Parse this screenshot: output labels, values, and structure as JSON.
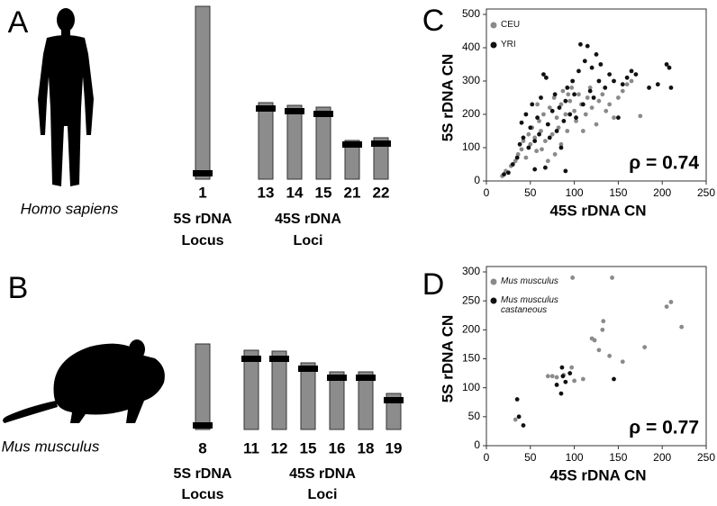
{
  "panels": [
    {
      "letter": "A",
      "species": "Homo sapiens",
      "chromosomes": [
        "1",
        "13",
        "14",
        "15",
        "21",
        "22"
      ],
      "locus_5s": [
        "5S rDNA",
        "Locus"
      ],
      "loci_45s": [
        "45S rDNA",
        "Loci"
      ]
    },
    {
      "letter": "B",
      "species": "Mus musculus",
      "chromosomes": [
        "8",
        "11",
        "12",
        "15",
        "16",
        "18",
        "19"
      ],
      "locus_5s": [
        "5S rDNA",
        "Locus"
      ],
      "loci_45s": [
        "45S rDNA",
        "Loci"
      ]
    }
  ],
  "chart_data": [
    {
      "type": "scatter",
      "label": "C",
      "xlabel": "45S rDNA CN",
      "ylabel": "5S rDNA CN",
      "annotation": "ρ = 0.74",
      "xlim": [
        0,
        250
      ],
      "ylim": [
        0,
        500
      ],
      "xticks": [
        0,
        50,
        100,
        150,
        200,
        250
      ],
      "yticks": [
        0,
        100,
        200,
        300,
        400,
        500
      ],
      "series": [
        {
          "name": "CEU",
          "color": "#8a8a8a",
          "x": [
            18,
            22,
            28,
            33,
            36,
            40,
            42,
            45,
            48,
            50,
            52,
            55,
            57,
            60,
            62,
            65,
            67,
            70,
            72,
            75,
            77,
            80,
            82,
            85,
            87,
            90,
            92,
            95,
            97,
            100,
            102,
            105,
            108,
            110,
            113,
            115,
            118,
            120,
            125,
            128,
            132,
            136,
            140,
            145,
            150,
            155,
            160,
            165,
            175,
            58,
            63,
            70,
            85,
            93,
            78
          ],
          "values": [
            15,
            30,
            45,
            60,
            80,
            95,
            120,
            70,
            140,
            110,
            160,
            130,
            90,
            180,
            150,
            200,
            120,
            170,
            220,
            140,
            250,
            190,
            160,
            230,
            270,
            200,
            150,
            240,
            280,
            210,
            180,
            260,
            230,
            150,
            200,
            250,
            280,
            220,
            170,
            240,
            260,
            210,
            230,
            190,
            250,
            270,
            290,
            300,
            195,
            230,
            95,
            60,
            110,
            260,
            80
          ]
        },
        {
          "name": "YRI",
          "color": "#111111",
          "x": [
            20,
            25,
            30,
            35,
            38,
            40,
            42,
            45,
            48,
            50,
            52,
            55,
            58,
            60,
            62,
            65,
            68,
            70,
            72,
            75,
            78,
            80,
            83,
            85,
            88,
            90,
            92,
            95,
            98,
            100,
            102,
            105,
            107,
            110,
            112,
            115,
            118,
            120,
            122,
            125,
            128,
            130,
            135,
            140,
            145,
            150,
            155,
            160,
            165,
            170,
            185,
            205,
            208,
            210,
            195,
            55,
            67,
            90
          ],
          "values": [
            20,
            25,
            50,
            70,
            110,
            175,
            130,
            200,
            100,
            160,
            230,
            120,
            190,
            140,
            250,
            320,
            310,
            170,
            130,
            210,
            260,
            150,
            220,
            100,
            180,
            240,
            280,
            200,
            300,
            260,
            190,
            330,
            410,
            230,
            360,
            405,
            270,
            340,
            250,
            380,
            300,
            350,
            280,
            320,
            300,
            190,
            290,
            310,
            330,
            320,
            280,
            350,
            340,
            280,
            290,
            35,
            40,
            30
          ]
        }
      ]
    },
    {
      "type": "scatter",
      "label": "D",
      "xlabel": "45S rDNA CN",
      "ylabel": "5S rDNA CN",
      "annotation": "ρ = 0.77",
      "xlim": [
        0,
        250
      ],
      "ylim": [
        0,
        300
      ],
      "xticks": [
        0,
        50,
        100,
        150,
        200,
        250
      ],
      "yticks": [
        0,
        50,
        100,
        150,
        200,
        250,
        300
      ],
      "series": [
        {
          "name": "Mus musculus",
          "color": "#8a8a8a",
          "x": [
            33,
            70,
            75,
            80,
            88,
            97,
            98,
            100,
            110,
            120,
            123,
            128,
            132,
            133,
            140,
            143,
            155,
            180,
            205,
            210,
            222
          ],
          "values": [
            45,
            120,
            120,
            118,
            122,
            135,
            290,
            112,
            115,
            185,
            182,
            165,
            200,
            215,
            155,
            290,
            145,
            170,
            240,
            248,
            205
          ]
        },
        {
          "name": "Mus musculus castaneous",
          "color": "#111111",
          "x": [
            35,
            37,
            42,
            80,
            85,
            86,
            87,
            90,
            95,
            145
          ],
          "values": [
            80,
            50,
            35,
            105,
            90,
            135,
            120,
            110,
            125,
            115
          ]
        }
      ]
    }
  ]
}
